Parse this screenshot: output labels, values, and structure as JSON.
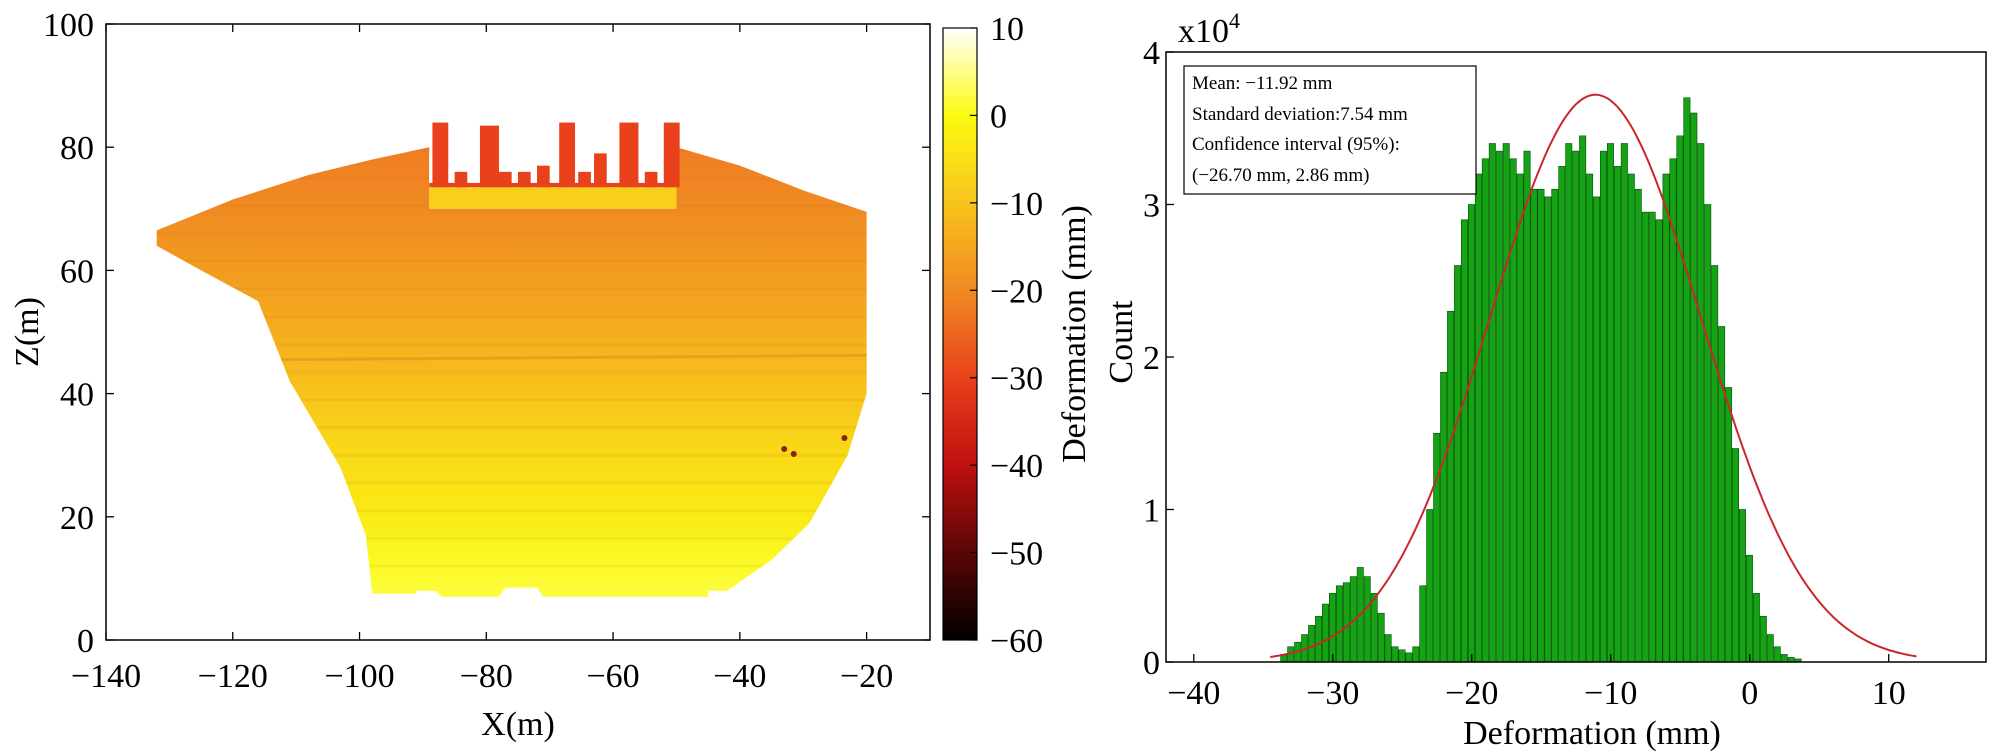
{
  "colors": {
    "bar": "#13a313",
    "bar_edge": "#0a4a0a",
    "fit_curve": "#c8282a",
    "axis": "#000000"
  },
  "chart_data": [
    {
      "type": "heatmap",
      "title": "",
      "xlabel": "X(m)",
      "ylabel": "Z(m)",
      "xlim": [
        -140,
        -10
      ],
      "ylim": [
        0,
        100
      ],
      "xticks": [
        -140,
        -120,
        -100,
        -80,
        -60,
        -40,
        -20
      ],
      "yticks": [
        0,
        20,
        40,
        60,
        80,
        100
      ],
      "colorbar": {
        "label": "Deformation (mm)",
        "range": [
          -60,
          10
        ],
        "ticks": [
          10,
          0,
          -10,
          -20,
          -30,
          -40,
          -50,
          -60
        ],
        "colormap": "hot",
        "stops": [
          {
            "v": 10,
            "color": "#ffffff"
          },
          {
            "v": 0,
            "color": "#fbfb10"
          },
          {
            "v": -10,
            "color": "#f8c41c"
          },
          {
            "v": -20,
            "color": "#f08a22"
          },
          {
            "v": -30,
            "color": "#e9411b"
          },
          {
            "v": -40,
            "color": "#c01010"
          },
          {
            "v": -50,
            "color": "#5a0606"
          },
          {
            "v": -60,
            "color": "#000000"
          }
        ]
      },
      "outline": [
        [
          -132,
          66.5
        ],
        [
          -120,
          71.5
        ],
        [
          -108,
          75.5
        ],
        [
          -98,
          78
        ],
        [
          -89,
          80
        ],
        [
          -89,
          70
        ],
        [
          -50,
          70
        ],
        [
          -50,
          80
        ],
        [
          -40,
          77
        ],
        [
          -30,
          73
        ],
        [
          -20,
          69.5
        ],
        [
          -20,
          40
        ],
        [
          -23,
          30
        ],
        [
          -29,
          19
        ],
        [
          -35,
          13
        ],
        [
          -42,
          8
        ],
        [
          -45,
          8
        ],
        [
          -45,
          7
        ],
        [
          -71,
          7
        ],
        [
          -72,
          8.5
        ],
        [
          -77,
          8.5
        ],
        [
          -78,
          7
        ],
        [
          -87,
          7
        ],
        [
          -88,
          8
        ],
        [
          -91,
          8
        ],
        [
          -91,
          7.5
        ],
        [
          -98,
          7.5
        ],
        [
          -99,
          17
        ],
        [
          -103,
          28
        ],
        [
          -111,
          42
        ],
        [
          -116,
          55
        ],
        [
          -125,
          60
        ],
        [
          -132,
          64
        ]
      ],
      "surface_bands": [
        {
          "z_top": 82,
          "deformation": -22
        },
        {
          "z_top": 70,
          "deformation": -20
        },
        {
          "z_top": 60,
          "deformation": -17
        },
        {
          "z_top": 50,
          "deformation": -14
        },
        {
          "z_top": 40,
          "deformation": -10
        },
        {
          "z_top": 30,
          "deformation": -6
        },
        {
          "z_top": 20,
          "deformation": -3
        },
        {
          "z_top": 12,
          "deformation": 1
        }
      ],
      "structure": {
        "deformation": -30,
        "base": {
          "x": [
            -89,
            -50
          ],
          "z": [
            73.5,
            79
          ]
        },
        "teeth": [
          [
            -88.5,
            -86,
            84
          ],
          [
            -85,
            -83,
            76
          ],
          [
            -81,
            -78,
            83.5
          ],
          [
            -78,
            -76,
            76
          ],
          [
            -75,
            -73,
            76
          ],
          [
            -72,
            -70,
            77
          ],
          [
            -68.5,
            -66,
            84
          ],
          [
            -65.5,
            -63.5,
            76
          ],
          [
            -63,
            -61,
            79
          ],
          [
            -59,
            -56,
            84
          ],
          [
            -55,
            -53,
            76
          ],
          [
            -52,
            -49.5,
            84
          ]
        ],
        "slab": {
          "x": [
            -89,
            -50
          ],
          "z": [
            70,
            73.5
          ],
          "deformation": -8
        }
      }
    },
    {
      "type": "bar",
      "title": "",
      "xlabel": "Deformation (mm)",
      "ylabel": "Count",
      "y_multiplier_label": "x10",
      "y_multiplier_exp": "4",
      "xlim": [
        -42,
        17
      ],
      "ylim": [
        0,
        4
      ],
      "xticks": [
        -40,
        -30,
        -20,
        -10,
        0,
        10
      ],
      "yticks": [
        0,
        1,
        2,
        3,
        4
      ],
      "bin_width": 0.5,
      "bins": [
        [
          -33.5,
          0.05
        ],
        [
          -33,
          0.1
        ],
        [
          -32.5,
          0.13
        ],
        [
          -32,
          0.18
        ],
        [
          -31.5,
          0.24
        ],
        [
          -31,
          0.3
        ],
        [
          -30.5,
          0.38
        ],
        [
          -30,
          0.45
        ],
        [
          -29.5,
          0.5
        ],
        [
          -29,
          0.52
        ],
        [
          -28.5,
          0.56
        ],
        [
          -28,
          0.62
        ],
        [
          -27.5,
          0.56
        ],
        [
          -27,
          0.45
        ],
        [
          -26.5,
          0.32
        ],
        [
          -26,
          0.18
        ],
        [
          -25.5,
          0.1
        ],
        [
          -25,
          0.08
        ],
        [
          -24.5,
          0.06
        ],
        [
          -24,
          0.1
        ],
        [
          -23.5,
          0.5
        ],
        [
          -23,
          1.0
        ],
        [
          -22.5,
          1.5
        ],
        [
          -22,
          1.9
        ],
        [
          -21.5,
          2.3
        ],
        [
          -21,
          2.6
        ],
        [
          -20.5,
          2.9
        ],
        [
          -20,
          3.0
        ],
        [
          -19.5,
          3.2
        ],
        [
          -19,
          3.3
        ],
        [
          -18.5,
          3.4
        ],
        [
          -18,
          3.35
        ],
        [
          -17.5,
          3.4
        ],
        [
          -17,
          3.3
        ],
        [
          -16.5,
          3.2
        ],
        [
          -16,
          3.35
        ],
        [
          -15.5,
          3.1
        ],
        [
          -15,
          3.1
        ],
        [
          -14.5,
          3.05
        ],
        [
          -14,
          3.1
        ],
        [
          -13.5,
          3.25
        ],
        [
          -13,
          3.4
        ],
        [
          -12.5,
          3.35
        ],
        [
          -12,
          3.45
        ],
        [
          -11.5,
          3.2
        ],
        [
          -11,
          3.05
        ],
        [
          -10.5,
          3.35
        ],
        [
          -10,
          3.4
        ],
        [
          -9.5,
          3.25
        ],
        [
          -9,
          3.4
        ],
        [
          -8.5,
          3.2
        ],
        [
          -8,
          3.1
        ],
        [
          -7.5,
          2.95
        ],
        [
          -7,
          2.95
        ],
        [
          -6.5,
          2.9
        ],
        [
          -6,
          3.2
        ],
        [
          -5.5,
          3.3
        ],
        [
          -5,
          3.45
        ],
        [
          -4.5,
          3.7
        ],
        [
          -4,
          3.6
        ],
        [
          -3.5,
          3.4
        ],
        [
          -3,
          3.0
        ],
        [
          -2.5,
          2.6
        ],
        [
          -2,
          2.2
        ],
        [
          -1.5,
          1.8
        ],
        [
          -1,
          1.4
        ],
        [
          -0.5,
          1.0
        ],
        [
          0,
          0.7
        ],
        [
          0.5,
          0.45
        ],
        [
          1,
          0.3
        ],
        [
          1.5,
          0.18
        ],
        [
          2,
          0.1
        ],
        [
          2.5,
          0.05
        ],
        [
          3,
          0.03
        ],
        [
          3.5,
          0.02
        ]
      ],
      "fit": {
        "mean": -11.1,
        "std": 7.6,
        "peak": 3.72,
        "x_range": [
          -34.5,
          12
        ]
      },
      "stats_box": {
        "mean": "Mean: −11.92 mm",
        "std": "Standard deviation:7.54 mm",
        "ci_label": "Confidence interval (95%):",
        "ci_value": "(−26.70 mm, 2.86 mm)"
      }
    }
  ]
}
